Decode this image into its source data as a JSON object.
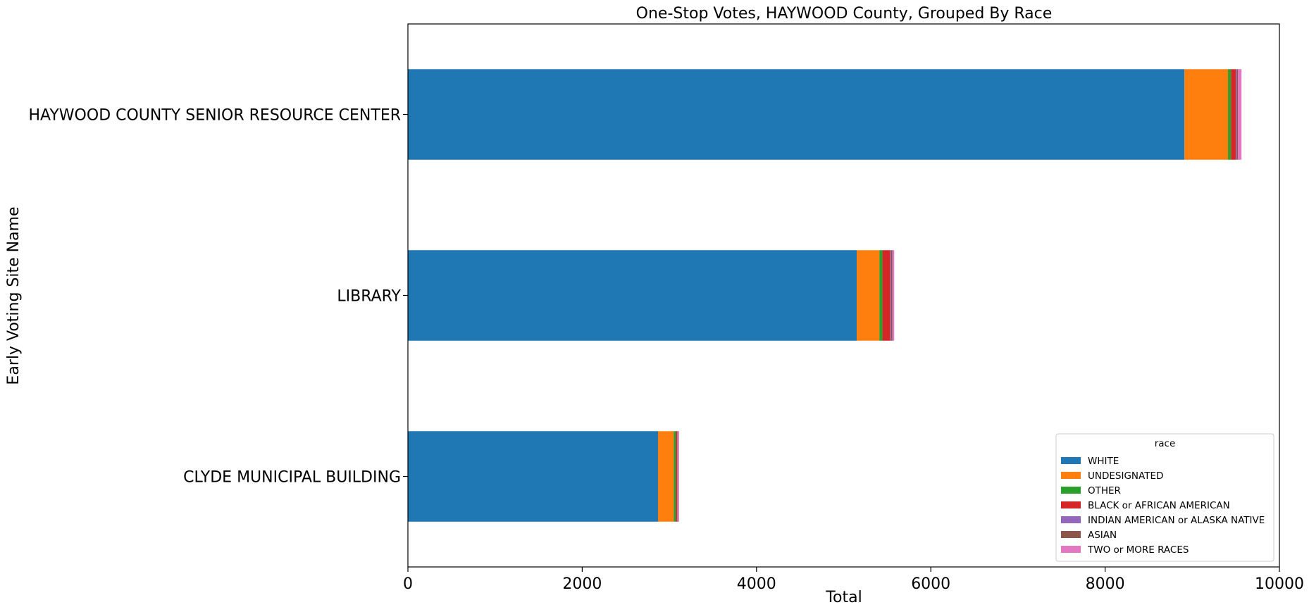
{
  "chart_data": {
    "type": "bar",
    "orientation": "horizontal",
    "stacked": true,
    "title": "One-Stop Votes, HAYWOOD County, Grouped By Race",
    "xlabel": "Total",
    "ylabel": "Early Voting Site Name",
    "xlim": [
      0,
      10000
    ],
    "xticks": [
      "0",
      "2000",
      "4000",
      "6000",
      "8000",
      "10000"
    ],
    "grid": false,
    "legend_title": "race",
    "legend_position": "lower-right",
    "categories": [
      "CLYDE MUNICIPAL BUILDING",
      "LIBRARY",
      "HAYWOOD COUNTY SENIOR RESOURCE CENTER"
    ],
    "series": [
      {
        "name": "WHITE",
        "color": "#1f77b4",
        "values": [
          2870,
          5150,
          8910
        ]
      },
      {
        "name": "UNDESIGNATED",
        "color": "#ff7f0e",
        "values": [
          180,
          260,
          500
        ]
      },
      {
        "name": "OTHER",
        "color": "#2ca02c",
        "values": [
          25,
          35,
          35
        ]
      },
      {
        "name": "BLACK or AFRICAN AMERICAN",
        "color": "#d62728",
        "values": [
          15,
          90,
          55
        ]
      },
      {
        "name": "INDIAN AMERICAN or ALASKA NATIVE",
        "color": "#9467bd",
        "values": [
          5,
          10,
          10
        ]
      },
      {
        "name": "ASIAN",
        "color": "#8c564b",
        "values": [
          5,
          15,
          15
        ]
      },
      {
        "name": "TWO or MORE RACES",
        "color": "#e377c2",
        "values": [
          10,
          20,
          40
        ]
      }
    ]
  }
}
